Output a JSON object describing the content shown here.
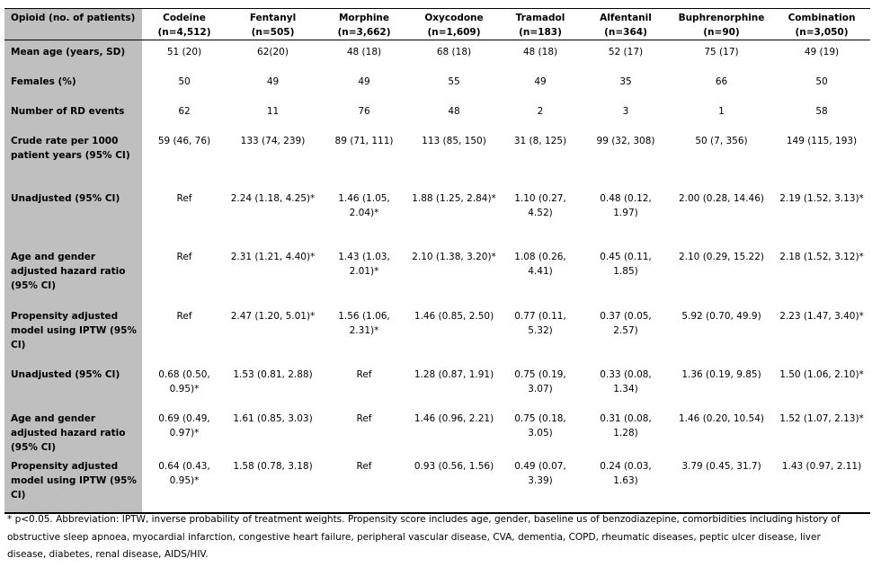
{
  "table": {
    "corner": "Opioid (no. of patients)",
    "columns": [
      {
        "name": "Codeine",
        "n": "(n=4,512)"
      },
      {
        "name": "Fentanyl",
        "n": "(n=505)"
      },
      {
        "name": "Morphine",
        "n": "(n=3,662)"
      },
      {
        "name": "Oxycodone",
        "n": "(n=1,609)"
      },
      {
        "name": "Tramadol",
        "n": "(n=183)"
      },
      {
        "name": "Alfentanil",
        "n": "(n=364)"
      },
      {
        "name": "Buphrenorphine",
        "n": "(n=90)"
      },
      {
        "name": "Combination",
        "n": "(n=3,050)"
      }
    ],
    "rows": [
      {
        "label": "Mean age (years, SD)",
        "cells": [
          "51 (20)",
          "62(20)",
          "48 (18)",
          "68 (18)",
          "48 (18)",
          "52 (17)",
          "75 (17)",
          "49 (19)"
        ]
      },
      {
        "label": "Females (%)",
        "cells": [
          "50",
          "49",
          "49",
          "55",
          "49",
          "35",
          "66",
          "50"
        ]
      },
      {
        "label": "Number of RD events",
        "cells": [
          "62",
          "11",
          "76",
          "48",
          "2",
          "3",
          "1",
          "58"
        ]
      },
      {
        "label": "Crude rate per 1000 patient years (95% CI)",
        "cells": [
          "59 (46, 76)",
          "133 (74, 239)",
          "89 (71, 111)",
          "113 (85, 150)",
          "31 (8, 125)",
          "99 (32, 308)",
          "50 (7, 356)",
          "149 (115, 193)"
        ]
      },
      {
        "label": "Unadjusted (95% CI)",
        "cells": [
          "Ref",
          "2.24 (1.18, 4.25)*",
          "1.46 (1.05, 2.04)*",
          "1.88 (1.25, 2.84)*",
          "1.10 (0.27, 4.52)",
          "0.48 (0.12, 1.97)",
          "2.00 (0.28, 14.46)",
          "2.19 (1.52, 3.13)*"
        ]
      },
      {
        "label": "Age and gender adjusted hazard ratio (95% CI)",
        "cells": [
          "Ref",
          "2.31 (1.21, 4.40)*",
          "1.43 (1.03, 2.01)*",
          "2.10 (1.38, 3.20)*",
          "1.08 (0.26, 4.41)",
          "0.45 (0.11, 1.85)",
          "2.10 (0.29, 15.22)",
          "2.18 (1.52, 3.12)*"
        ]
      },
      {
        "label": "Propensity adjusted model using IPTW (95% CI)",
        "cells": [
          "Ref",
          "2.47 (1.20, 5.01)*",
          "1.56 (1.06, 2.31)*",
          "1.46 (0.85, 2.50)",
          "0.77 (0.11, 5.32)",
          "0.37 (0.05, 2.57)",
          "5.92 (0.70, 49.9)",
          "2.23 (1.47, 3.40)*"
        ]
      },
      {
        "label": "Unadjusted (95% CI)",
        "cells": [
          "0.68 (0.50, 0.95)*",
          "1.53 (0.81, 2.88)",
          "Ref",
          "1.28 (0.87, 1.91)",
          "0.75 (0.19, 3.07)",
          "0.33 (0.08, 1.34)",
          "1.36 (0.19, 9.85)",
          "1.50 (1.06, 2.10)*"
        ]
      },
      {
        "label": "Age and gender adjusted hazard ratio (95% CI)",
        "cells": [
          "0.69 (0.49, 0.97)*",
          "1.61 (0.85, 3.03)",
          "Ref",
          "1.46 (0.96, 2.21)",
          "0.75 (0.18, 3.05)",
          "0.31 (0.08, 1.28)",
          "1.46 (0.20, 10.54)",
          "1.52 (1.07, 2.13)*"
        ]
      },
      {
        "label": "Propensity adjusted model using IPTW (95% CI)",
        "cells": [
          "0.64 (0.43, 0.95)*",
          "1.58 (0.78, 3.18)",
          "Ref",
          "0.93 (0.56, 1.56)",
          "0.49 (0.07, 3.39)",
          "0.24 (0.03, 1.63)",
          "3.79 (0.45, 31.7)",
          "1.43 (0.97, 2.11)"
        ]
      }
    ],
    "footnote": "* p<0.05. Abbreviation: IPTW, inverse probability of treatment weights. Propensity score includes age, gender, baseline us of benzodiazepine, comorbidities including history of obstructive sleep apnoea, myocardial infarction, congestive heart failure, peripheral vascular disease, CVA, dementia, COPD, rheumatic diseases, peptic ulcer disease, liver disease, diabetes, renal disease, AIDS/HIV."
  }
}
